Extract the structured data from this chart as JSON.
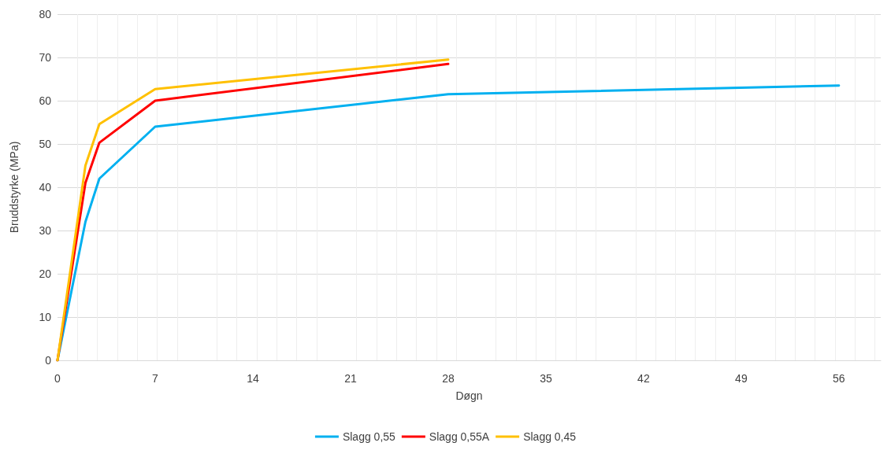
{
  "chart_data": {
    "type": "line",
    "xlabel": "Døgn",
    "ylabel": "Bruddstyrke (MPa)",
    "xlim": [
      0,
      59
    ],
    "xticks": [
      0,
      7,
      14,
      21,
      28,
      35,
      42,
      49,
      56
    ],
    "ylim": [
      0,
      80
    ],
    "yticks": [
      0,
      10,
      20,
      30,
      40,
      50,
      60,
      70,
      80
    ],
    "grid": true,
    "legend": "bottom",
    "marker": "none",
    "line_style": "solid",
    "series": [
      {
        "name": "Slagg 0,55",
        "color": "#00b0f0",
        "x": [
          0,
          1,
          2,
          3,
          7,
          28,
          56
        ],
        "values": [
          0,
          16,
          32,
          42,
          54,
          61.5,
          63.5
        ]
      },
      {
        "name": "Slagg 0,55A",
        "color": "#ff0000",
        "x": [
          0,
          2,
          3,
          7,
          28
        ],
        "values": [
          0,
          41,
          50.3,
          60,
          68.5
        ]
      },
      {
        "name": "Slagg 0,45",
        "color": "#ffc000",
        "x": [
          0,
          2,
          3,
          7,
          28
        ],
        "values": [
          0,
          45,
          54.6,
          62.7,
          69.5
        ]
      }
    ]
  }
}
